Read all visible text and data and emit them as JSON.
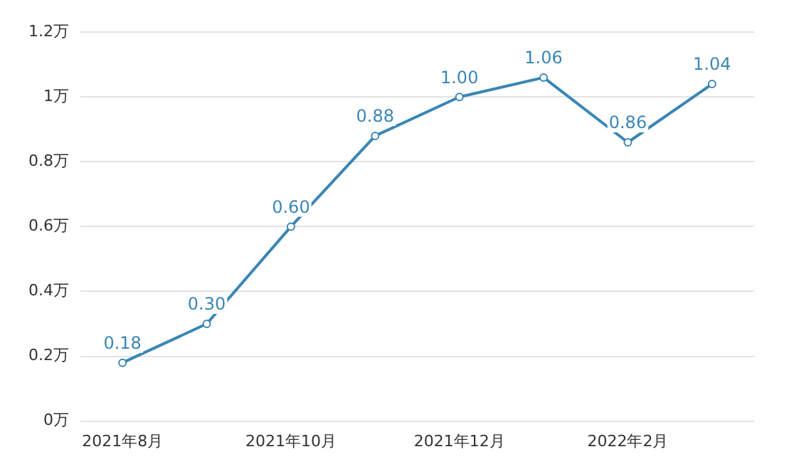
{
  "chart_data": {
    "type": "line",
    "categories": [
      "2021年8月",
      null,
      "2021年10月",
      null,
      "2021年12月",
      null,
      "2022年2月",
      null
    ],
    "series": [
      {
        "color": "#3a86b4",
        "values": [
          0.18,
          0.3,
          0.6,
          0.88,
          1.0,
          1.06,
          0.86,
          1.04
        ],
        "value_labels": [
          "0.18",
          "0.30",
          "0.60",
          "0.88",
          "1.00",
          "1.06",
          "0.86",
          "1.04"
        ]
      }
    ],
    "ylim": [
      0,
      1.2
    ],
    "yticks": [
      {
        "value": 0,
        "label": "0万"
      },
      {
        "value": 0.2,
        "label": "0.2万"
      },
      {
        "value": 0.4,
        "label": "0.4万"
      },
      {
        "value": 0.6,
        "label": "0.6万"
      },
      {
        "value": 0.8,
        "label": "0.8万"
      },
      {
        "value": 1,
        "label": "1万"
      },
      {
        "value": 1.2,
        "label": "1.2万"
      }
    ],
    "grid": "y",
    "legend": false,
    "marker": "circle",
    "line_style": "solid"
  }
}
